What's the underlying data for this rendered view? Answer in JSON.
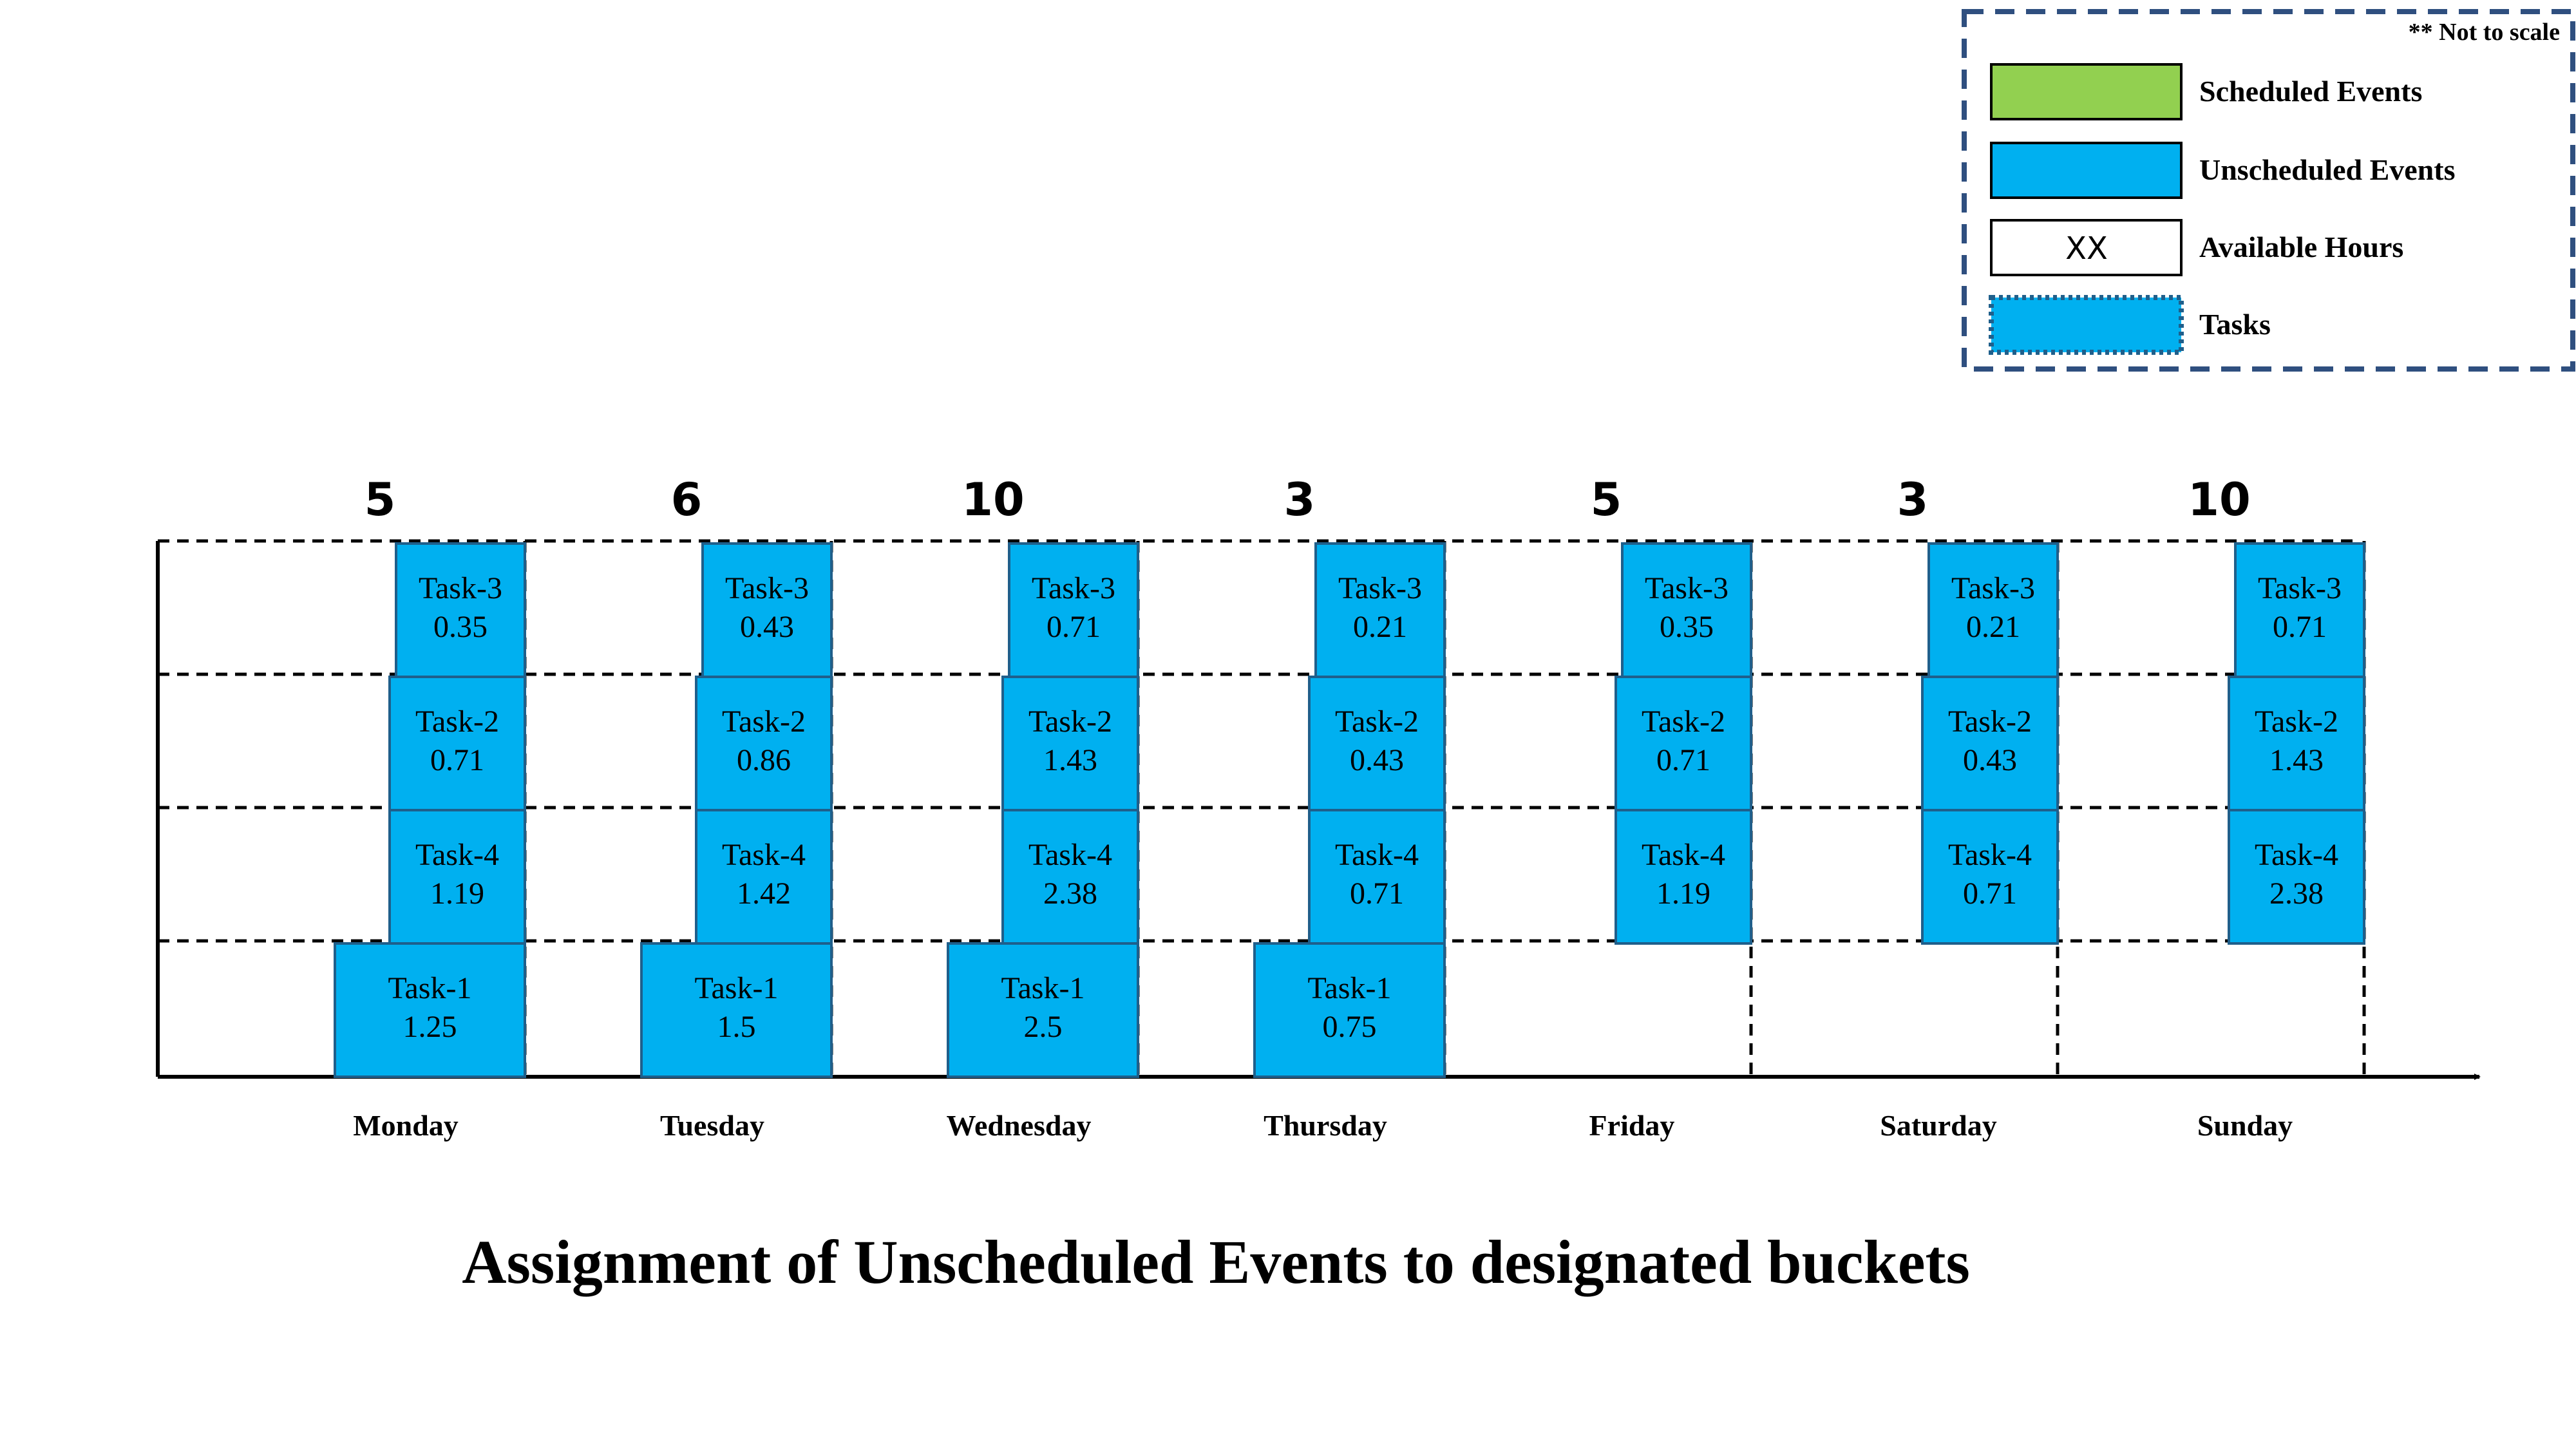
{
  "legend": {
    "note": "** Not to scale",
    "items": [
      {
        "key": "scheduled",
        "label": "Scheduled Events",
        "fill": "#92d050",
        "style": "solid"
      },
      {
        "key": "unscheduled",
        "label": "Unscheduled Events",
        "fill": "#00b0f0",
        "style": "solid"
      },
      {
        "key": "available",
        "label": "Available Hours",
        "fill": "#ffffff",
        "style": "solid",
        "sample_text": "XX"
      },
      {
        "key": "tasks",
        "label": "Tasks",
        "fill": "#00b0f0",
        "style": "dotted"
      }
    ]
  },
  "colors": {
    "task_fill": "#00b0f0",
    "task_border": "#1f5f8b",
    "legend_border": "#2f4f7f",
    "axis": "#000000"
  },
  "days": [
    {
      "name": "Monday",
      "available": "5",
      "tasks": [
        {
          "label": "Task-1",
          "value": "1.25"
        },
        {
          "label": "Task-4",
          "value": "1.19"
        },
        {
          "label": "Task-2",
          "value": "0.71"
        },
        {
          "label": "Task-3",
          "value": "0.35"
        }
      ]
    },
    {
      "name": "Tuesday",
      "available": "6",
      "tasks": [
        {
          "label": "Task-1",
          "value": "1.5"
        },
        {
          "label": "Task-4",
          "value": "1.42"
        },
        {
          "label": "Task-2",
          "value": "0.86"
        },
        {
          "label": "Task-3",
          "value": "0.43"
        }
      ]
    },
    {
      "name": "Wednesday",
      "available": "10",
      "tasks": [
        {
          "label": "Task-1",
          "value": "2.5"
        },
        {
          "label": "Task-4",
          "value": "2.38"
        },
        {
          "label": "Task-2",
          "value": "1.43"
        },
        {
          "label": "Task-3",
          "value": "0.71"
        }
      ]
    },
    {
      "name": "Thursday",
      "available": "3",
      "tasks": [
        {
          "label": "Task-1",
          "value": "0.75"
        },
        {
          "label": "Task-4",
          "value": "0.71"
        },
        {
          "label": "Task-2",
          "value": "0.43"
        },
        {
          "label": "Task-3",
          "value": "0.21"
        }
      ]
    },
    {
      "name": "Friday",
      "available": "5",
      "tasks": [
        {
          "label": "Task-4",
          "value": "1.19"
        },
        {
          "label": "Task-2",
          "value": "0.71"
        },
        {
          "label": "Task-3",
          "value": "0.35"
        }
      ]
    },
    {
      "name": "Saturday",
      "available": "3",
      "tasks": [
        {
          "label": "Task-4",
          "value": "0.71"
        },
        {
          "label": "Task-2",
          "value": "0.43"
        },
        {
          "label": "Task-3",
          "value": "0.21"
        }
      ]
    },
    {
      "name": "Sunday",
      "available": "10",
      "tasks": [
        {
          "label": "Task-4",
          "value": "2.38"
        },
        {
          "label": "Task-2",
          "value": "1.43"
        },
        {
          "label": "Task-3",
          "value": "0.71"
        }
      ]
    }
  ],
  "caption": "Assignment of Unscheduled Events to designated buckets"
}
